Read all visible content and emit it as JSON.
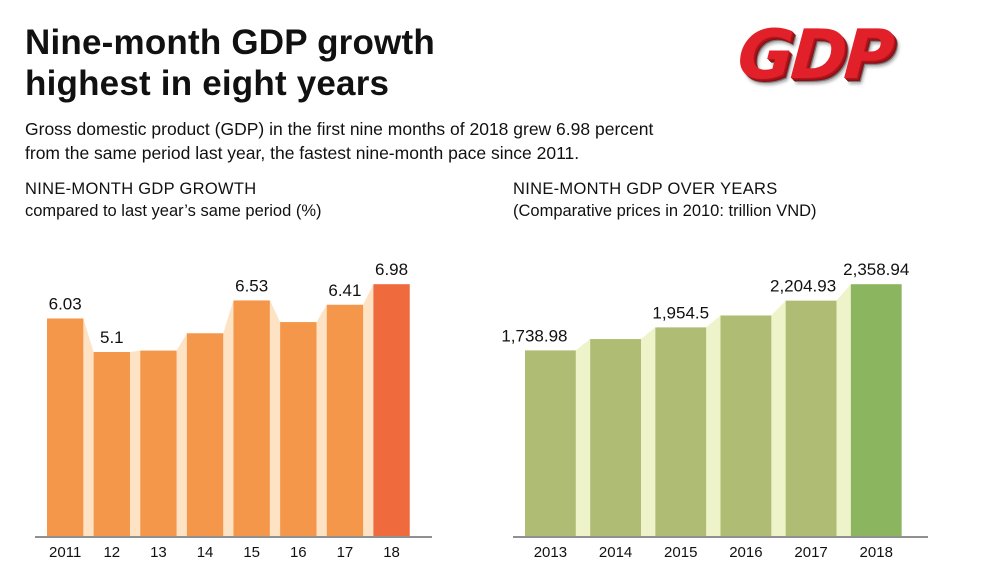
{
  "title_line1": "Nine-month GDP growth",
  "title_line2": "highest in eight years",
  "logo_text": "GDP",
  "description_line1": "Gross domestic product (GDP) in the first nine months of 2018 grew 6.98 percent",
  "description_line2": "from the same period last year, the fastest nine-month pace since 2011.",
  "colors": {
    "orange_bar": "#f4974a",
    "orange_highlight": "#ef6a3d",
    "orange_step": "#fde2c4",
    "green_bar": "#aebd73",
    "green_highlight": "#8bb55f",
    "green_step": "#eef3c9"
  },
  "chart_data": [
    {
      "type": "bar",
      "title": "NINE-MONTH GDP GROWTH",
      "subtitle": "compared to last year’s same period (%)",
      "categories": [
        "2011",
        "12",
        "13",
        "14",
        "15",
        "16",
        "17",
        "18"
      ],
      "values": [
        6.03,
        5.1,
        5.14,
        5.62,
        6.53,
        5.93,
        6.41,
        6.98
      ],
      "value_labels": [
        "6.03",
        "5.1",
        "",
        "",
        "6.53",
        "",
        "6.41",
        "6.98"
      ],
      "highlight_index": 7,
      "ylim": [
        0,
        7.9
      ],
      "xlabel": "",
      "ylabel": "",
      "grid": false
    },
    {
      "type": "bar",
      "title": "NINE-MONTH GDP OVER YEARS",
      "subtitle": "(Comparative prices in 2010: trillion VND)",
      "categories": [
        "2013",
        "2014",
        "2015",
        "2016",
        "2017",
        "2018"
      ],
      "values": [
        1738.98,
        1845,
        1954.5,
        2066,
        2204.93,
        2358.94
      ],
      "value_labels": [
        "1,738.98",
        "",
        "1,954.5",
        "",
        "2,204.93",
        "2,358.94"
      ],
      "highlight_index": 5,
      "ylim": [
        0,
        2670
      ],
      "xlabel": "",
      "ylabel": "",
      "grid": false
    }
  ]
}
